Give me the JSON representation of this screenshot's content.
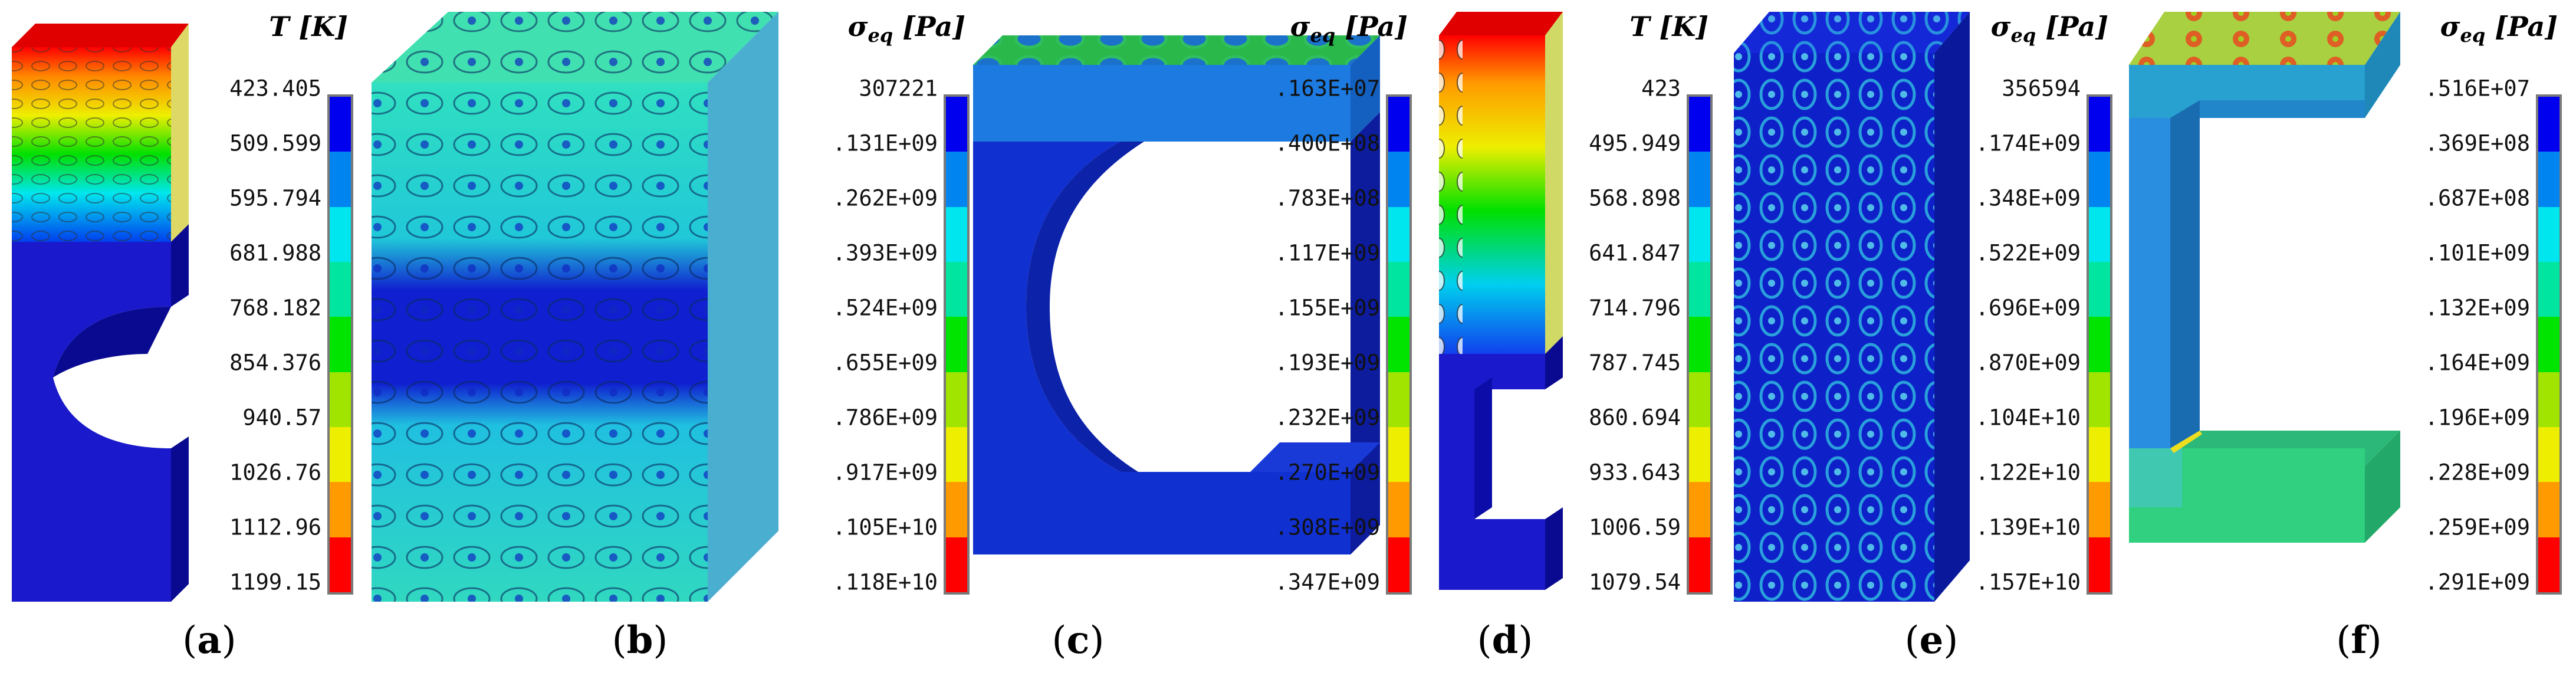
{
  "colors": [
    "#0000ee",
    "#0085f0",
    "#00e6ee",
    "#00e6a0",
    "#00e400",
    "#a0e400",
    "#eeee00",
    "#ff9a00",
    "#ff0000"
  ],
  "panels": [
    {
      "id": "a",
      "caption_letter": "a",
      "legend": {
        "symbol": "T",
        "subscript": "",
        "unit": "[K]",
        "ticks": [
          "423.405",
          "509.599",
          "595.794",
          "681.988",
          "768.182",
          "854.376",
          "940.57",
          "1026.76",
          "1112.96",
          "1199.15"
        ]
      }
    },
    {
      "id": "b",
      "caption_letter": "b",
      "legend": {
        "symbol": "σ",
        "subscript": "eq",
        "unit": "[Pa]",
        "ticks": [
          "307221",
          ".131E+09",
          ".262E+09",
          ".393E+09",
          ".524E+09",
          ".655E+09",
          ".786E+09",
          ".917E+09",
          ".105E+10",
          ".118E+10"
        ]
      }
    },
    {
      "id": "c",
      "caption_letter": "c",
      "legend": {
        "symbol": "σ",
        "subscript": "eq",
        "unit": "[Pa]",
        "ticks": [
          ".163E+07",
          ".400E+08",
          ".783E+08",
          ".117E+09",
          ".155E+09",
          ".193E+09",
          ".232E+09",
          ".270E+09",
          ".308E+09",
          ".347E+09"
        ]
      }
    },
    {
      "id": "d",
      "caption_letter": "d",
      "legend": {
        "symbol": "T",
        "subscript": "",
        "unit": "[K]",
        "ticks": [
          "423",
          "495.949",
          "568.898",
          "641.847",
          "714.796",
          "787.745",
          "860.694",
          "933.643",
          "1006.59",
          "1079.54"
        ]
      }
    },
    {
      "id": "e",
      "caption_letter": "e",
      "legend": {
        "symbol": "σ",
        "subscript": "eq",
        "unit": "[Pa]",
        "ticks": [
          "356594",
          ".174E+09",
          ".348E+09",
          ".522E+09",
          ".696E+09",
          ".870E+09",
          ".104E+10",
          ".122E+10",
          ".139E+10",
          ".157E+10"
        ]
      }
    },
    {
      "id": "f",
      "caption_letter": "f",
      "legend": {
        "symbol": "σ",
        "subscript": "eq",
        "unit": "[Pa]",
        "ticks": [
          ".516E+07",
          ".369E+08",
          ".687E+08",
          ".101E+09",
          ".132E+09",
          ".164E+09",
          ".196E+09",
          ".228E+09",
          ".259E+09",
          ".291E+09"
        ]
      }
    }
  ]
}
